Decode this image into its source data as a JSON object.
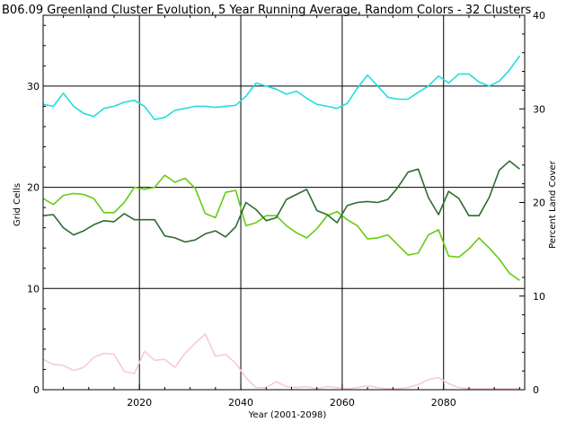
{
  "chart_data": {
    "type": "line",
    "title": "B06.09 Greenland Cluster Evolution, 5 Year Running Average, Random Colors - 32 Clusters",
    "xlabel": "Year (2001-2098)",
    "ylabel": "Grid Cells",
    "y2label": "Percent Land Cover",
    "xlim": [
      2001,
      2096
    ],
    "ylim": [
      0,
      37
    ],
    "y2lim": [
      0,
      40
    ],
    "x_ticks": [
      "2020",
      "2040",
      "2060",
      "2080"
    ],
    "y_ticks": [
      "0",
      "10",
      "20",
      "30"
    ],
    "y2_ticks": [
      "0",
      "10",
      "20",
      "30",
      "40"
    ],
    "grid": true,
    "legend": "none",
    "x": [
      2001,
      2003,
      2005,
      2007,
      2009,
      2011,
      2013,
      2015,
      2017,
      2019,
      2021,
      2023,
      2025,
      2027,
      2029,
      2031,
      2033,
      2035,
      2037,
      2039,
      2041,
      2043,
      2045,
      2047,
      2049,
      2051,
      2053,
      2055,
      2057,
      2059,
      2061,
      2063,
      2065,
      2067,
      2069,
      2071,
      2073,
      2075,
      2077,
      2079,
      2081,
      2083,
      2085,
      2087,
      2089,
      2091,
      2093,
      2095
    ],
    "series": [
      {
        "color": "#22dddd",
        "values": [
          28.2,
          28.0,
          29.3,
          28.0,
          27.3,
          27.0,
          27.8,
          28.0,
          28.4,
          28.6,
          28.0,
          26.7,
          26.9,
          27.6,
          27.8,
          28.0,
          28.0,
          27.9,
          28.0,
          28.1,
          29.0,
          30.3,
          30.0,
          29.7,
          29.2,
          29.5,
          28.8,
          28.2,
          28.0,
          27.8,
          28.3,
          29.8,
          31.1,
          30.0,
          28.9,
          28.7,
          28.7,
          29.4,
          30.0,
          31.0,
          30.3,
          31.2,
          31.2,
          30.4,
          30.0,
          30.5,
          31.6,
          33.0
        ]
      },
      {
        "color": "#66cc11",
        "values": [
          18.9,
          18.3,
          19.2,
          19.4,
          19.3,
          18.9,
          17.5,
          17.5,
          18.5,
          20.0,
          19.8,
          20.0,
          21.2,
          20.5,
          20.9,
          19.9,
          17.4,
          17.0,
          19.5,
          19.7,
          16.2,
          16.5,
          17.2,
          17.2,
          16.2,
          15.5,
          15.0,
          15.9,
          17.2,
          17.6,
          16.8,
          16.2,
          14.9,
          15.0,
          15.3,
          14.3,
          13.3,
          13.5,
          15.3,
          15.8,
          13.2,
          13.1,
          13.9,
          15.0,
          14.0,
          12.9,
          11.5,
          10.8
        ]
      },
      {
        "color": "#2e6b2e",
        "values": [
          17.2,
          17.3,
          16.0,
          15.3,
          15.7,
          16.3,
          16.7,
          16.6,
          17.4,
          16.8,
          16.8,
          16.8,
          15.2,
          15.0,
          14.6,
          14.8,
          15.4,
          15.7,
          15.1,
          16.1,
          18.5,
          17.8,
          16.7,
          17.0,
          18.8,
          19.3,
          19.8,
          17.7,
          17.3,
          16.5,
          18.2,
          18.5,
          18.6,
          18.5,
          18.8,
          20.0,
          21.5,
          21.8,
          19.0,
          17.3,
          19.6,
          18.9,
          17.2,
          17.2,
          19.0,
          21.7,
          22.6,
          21.8
        ]
      },
      {
        "color": "#f8c8e0",
        "values": [
          3.0,
          2.5,
          2.4,
          1.9,
          2.2,
          3.2,
          3.6,
          3.5,
          1.8,
          1.6,
          3.8,
          2.9,
          3.0,
          2.2,
          3.6,
          4.6,
          5.5,
          3.3,
          3.5,
          2.6,
          1.2,
          0.2,
          0.2,
          0.8,
          0.3,
          0.2,
          0.3,
          0.1,
          0.3,
          0.2,
          0.1,
          0.2,
          0.4,
          0.2,
          0.1,
          0.1,
          0.2,
          0.5,
          1.0,
          1.2,
          0.6,
          0.2,
          0.1,
          0.1,
          0.1,
          0.1,
          0.1,
          0.1
        ]
      }
    ]
  }
}
